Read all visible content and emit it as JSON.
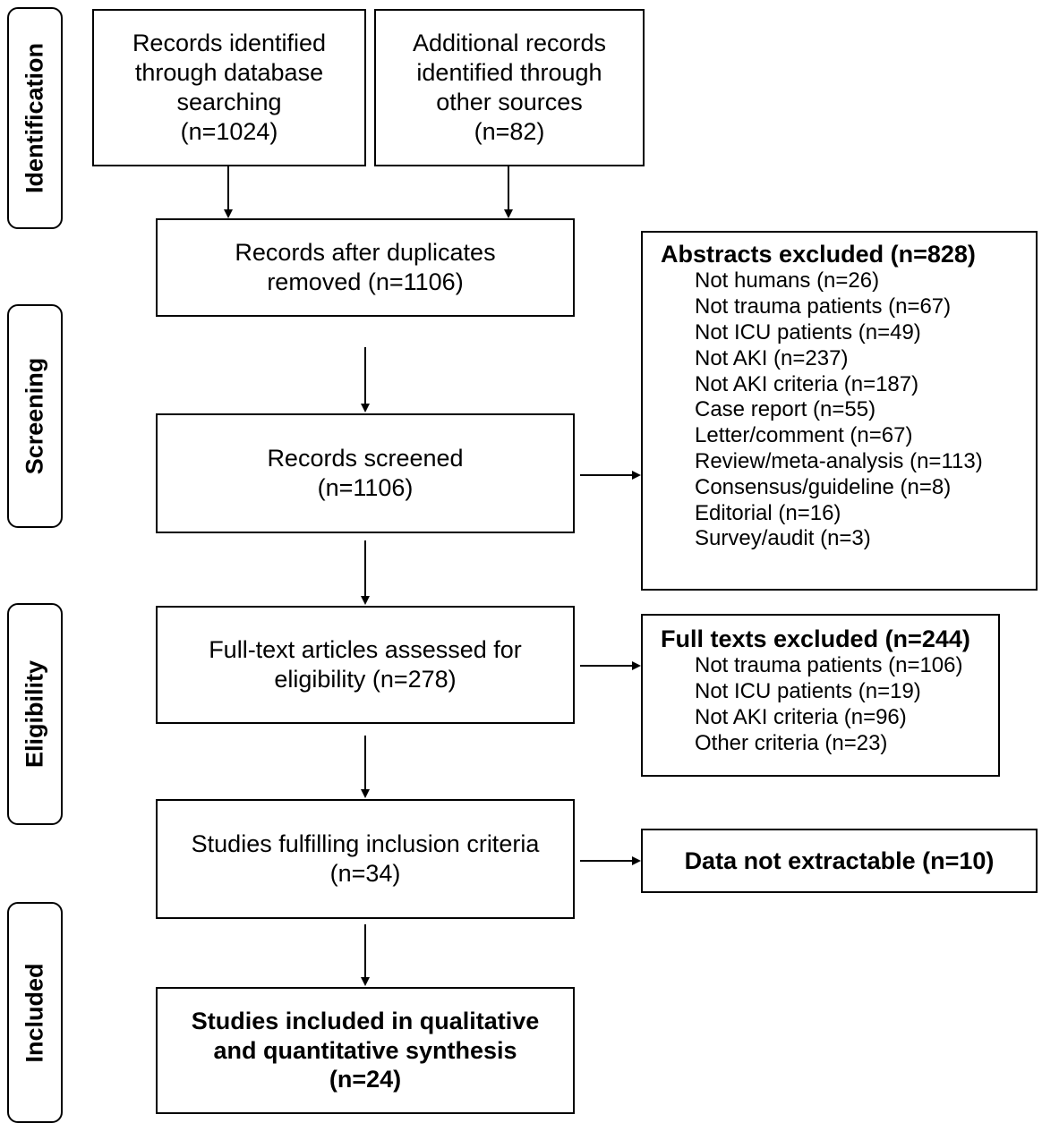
{
  "stages": [
    "Identification",
    "Screening",
    "Eligibility",
    "Included"
  ],
  "boxes": {
    "database": [
      "Records identified",
      "through database",
      "searching",
      "(n=1024)"
    ],
    "other": [
      "Additional records",
      "identified through",
      "other sources",
      "(n=82)"
    ],
    "dedup": [
      "Records after duplicates",
      "removed (n=1106)"
    ],
    "screened": [
      "Records screened",
      "(n=1106)"
    ],
    "fulltext": [
      "Full-text articles assessed for",
      "eligibility (n=278)"
    ],
    "fulfilling": [
      "Studies fulfilling inclusion criteria",
      "(n=34)"
    ],
    "included": [
      "Studies included in qualitative",
      "and quantitative synthesis",
      "(n=24)"
    ]
  },
  "abstracts_excluded": {
    "title": "Abstracts excluded (n=828)",
    "items": [
      "Not humans (n=26)",
      "Not trauma patients (n=67)",
      "Not ICU patients (n=49)",
      "Not AKI (n=237)",
      "Not AKI criteria (n=187)",
      "Case report (n=55)",
      "Letter/comment (n=67)",
      "Review/meta-analysis (n=113)",
      "Consensus/guideline (n=8)",
      "Editorial (n=16)",
      "Survey/audit (n=3)"
    ]
  },
  "fulltexts_excluded": {
    "title": "Full texts excluded (n=244)",
    "items": [
      "Not trauma patients (n=106)",
      "Not ICU patients (n=19)",
      "Not AKI criteria (n=96)",
      "Other criteria (n=23)"
    ]
  },
  "not_extractable": "Data not extractable (n=10)"
}
